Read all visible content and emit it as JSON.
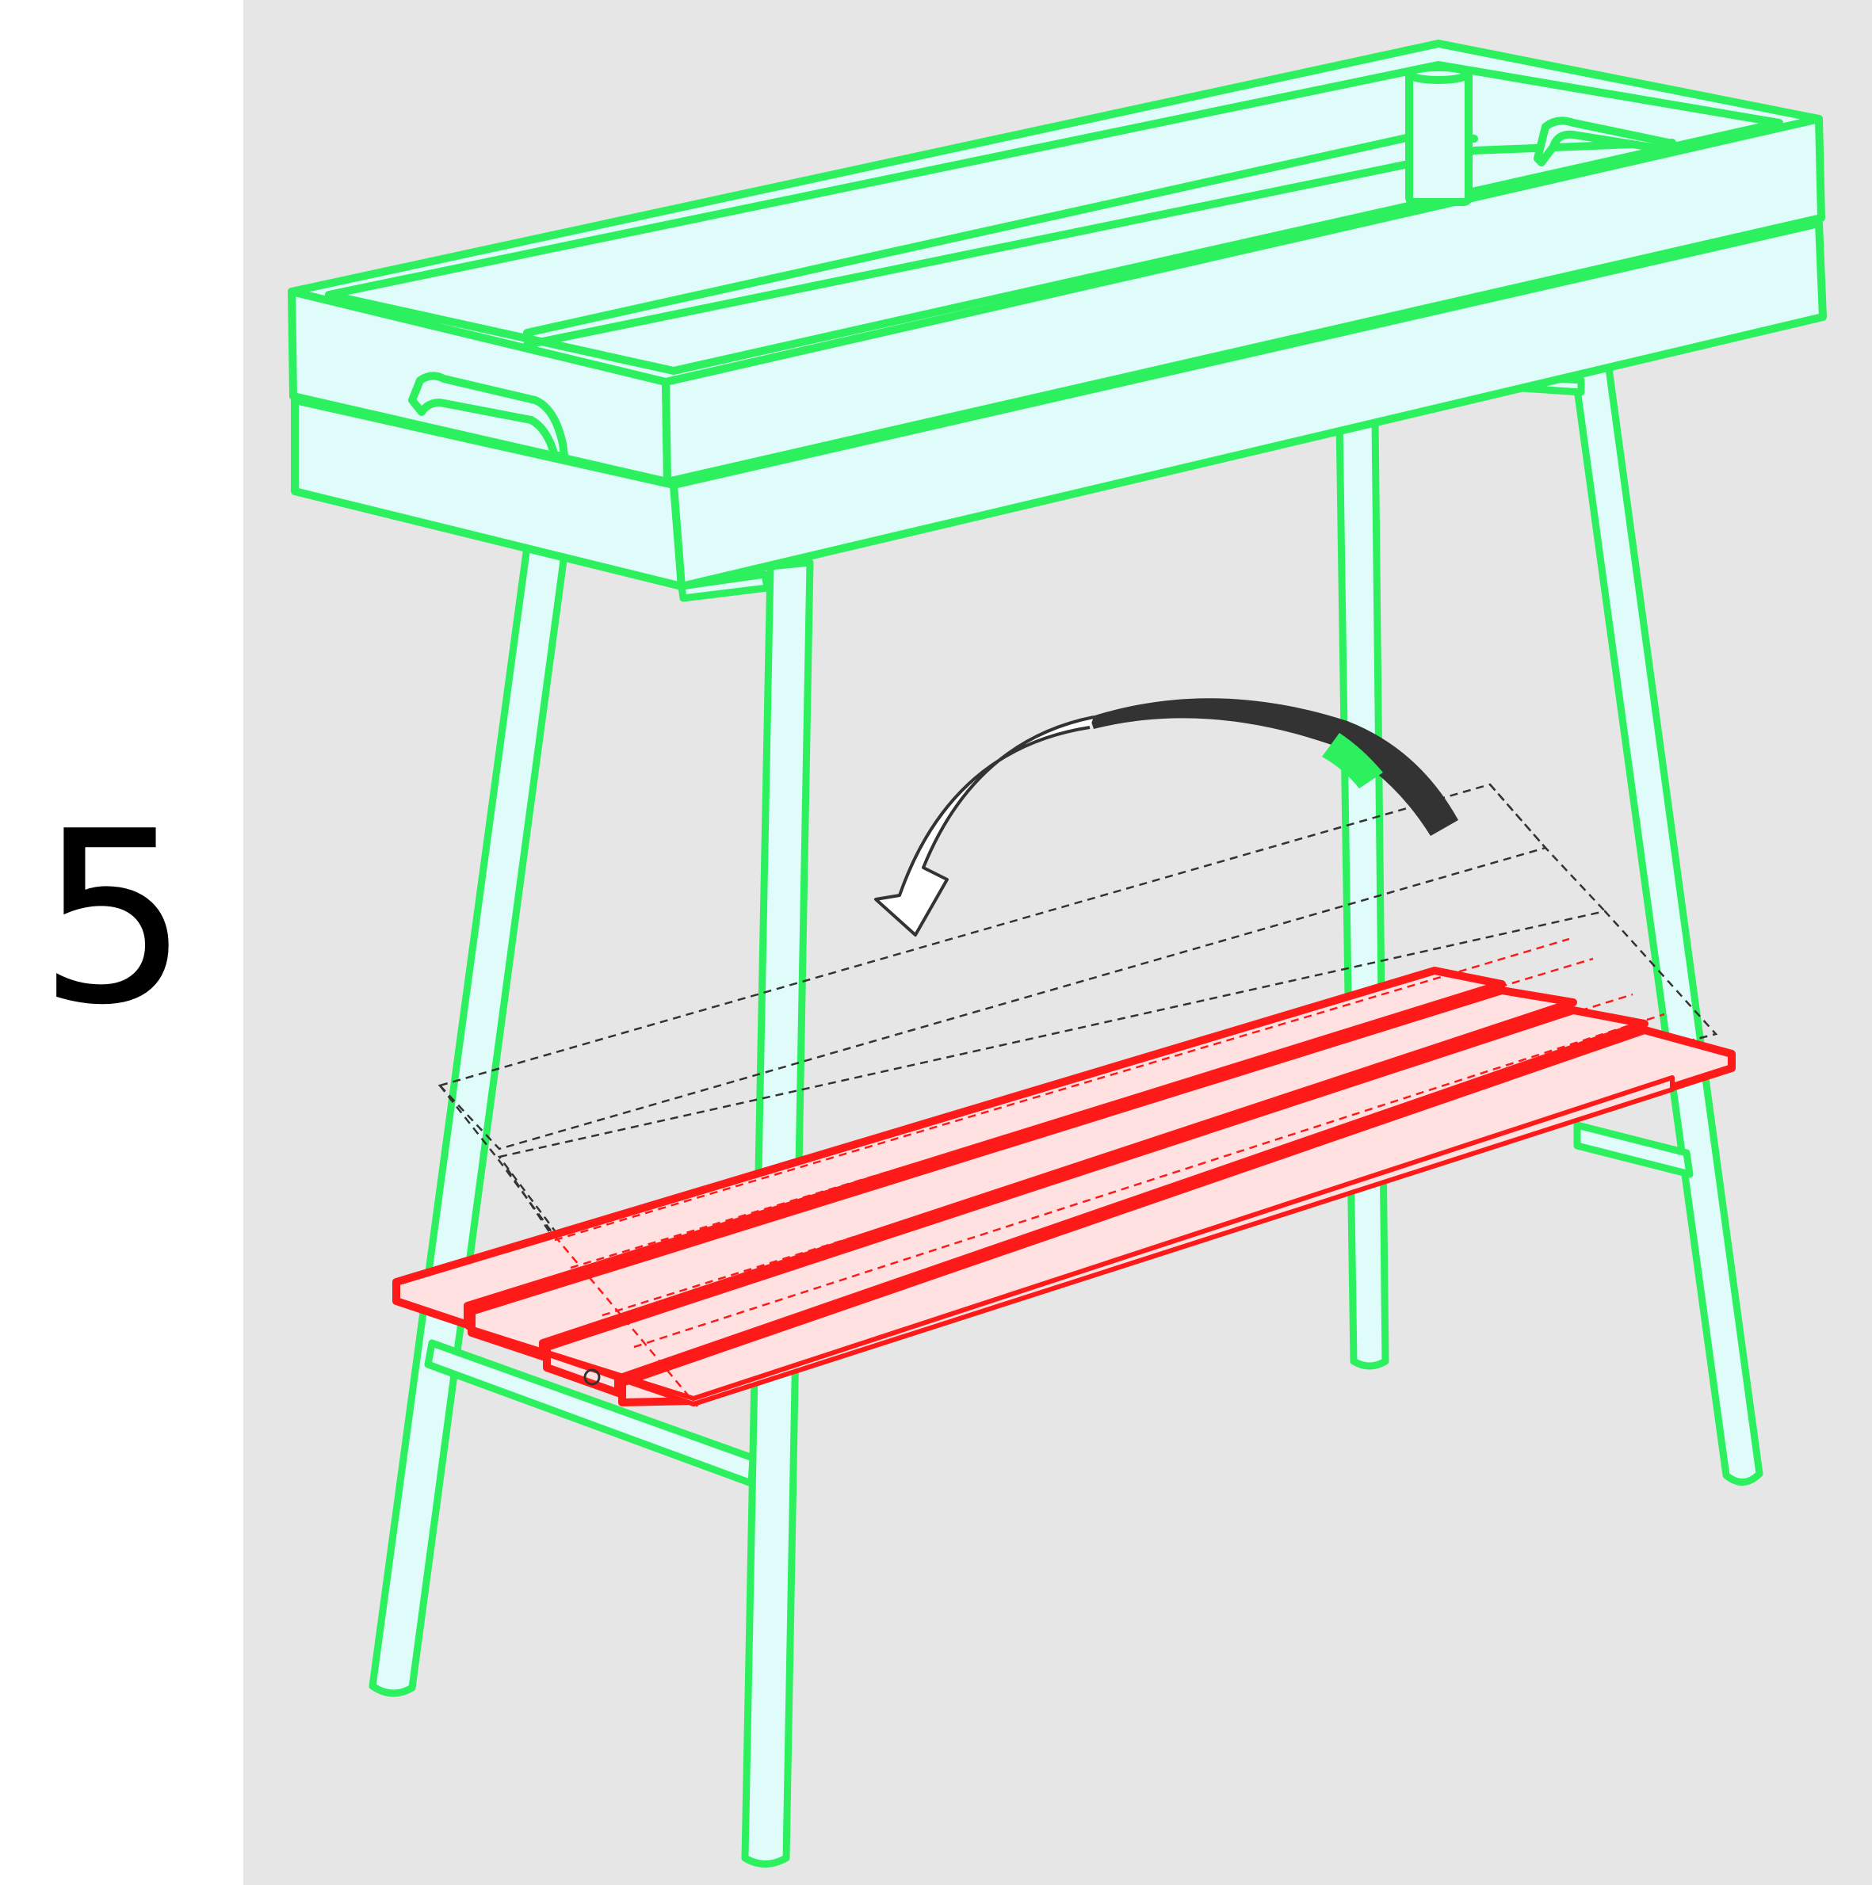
{
  "step": {
    "number": "5"
  },
  "colors": {
    "background_panel": "#e6e6e6",
    "margin": "#ffffff",
    "frame_outline": "#2df05f",
    "frame_fill": "#dffcfb",
    "shelf_outline": "#ff1a1a",
    "shelf_fill": "#ffe1e1",
    "arrow": "#333333",
    "guide_lines": "#333333"
  },
  "icons": {
    "rotation": "curved-arrow-icon",
    "table": "tray-table-frame",
    "shelf": "slatted-shelf"
  }
}
